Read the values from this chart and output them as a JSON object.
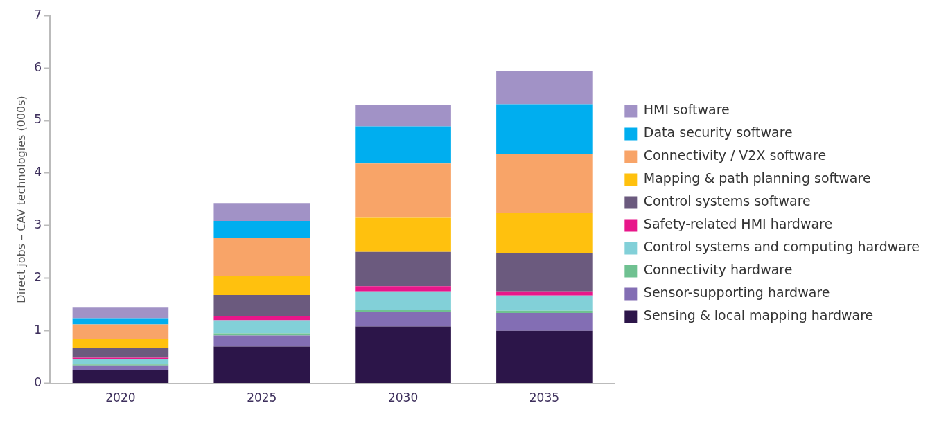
{
  "chart_data": {
    "type": "bar",
    "stacked": true,
    "ylabel": "Direct jobs – CAV technologies (000s)",
    "categories": [
      "2020",
      "2025",
      "2030",
      "2035"
    ],
    "series": [
      {
        "name": "Sensing & local mapping hardware",
        "color": "#2c1549",
        "values": [
          0.25,
          0.7,
          1.08,
          1.0
        ]
      },
      {
        "name": "Sensor-supporting hardware",
        "color": "#836eb4",
        "values": [
          0.09,
          0.21,
          0.27,
          0.34
        ]
      },
      {
        "name": "Connectivity hardware",
        "color": "#6fc191",
        "values": [
          0.02,
          0.04,
          0.05,
          0.04
        ]
      },
      {
        "name": "Control systems and computing hardware",
        "color": "#82d0d8",
        "values": [
          0.1,
          0.25,
          0.35,
          0.29
        ]
      },
      {
        "name": "Safety-related HMI hardware",
        "color": "#e8168a",
        "values": [
          0.03,
          0.08,
          0.1,
          0.08
        ]
      },
      {
        "name": "Control systems software",
        "color": "#6b5a7e",
        "values": [
          0.19,
          0.4,
          0.65,
          0.72
        ]
      },
      {
        "name": "Mapping & path planning software",
        "color": "#ffc10e",
        "values": [
          0.17,
          0.36,
          0.65,
          0.78
        ]
      },
      {
        "name": "Connectivity / V2X software",
        "color": "#f8a468",
        "values": [
          0.27,
          0.72,
          1.03,
          1.11
        ]
      },
      {
        "name": "Data security software",
        "color": "#00aeef",
        "values": [
          0.12,
          0.33,
          0.71,
          0.95
        ]
      },
      {
        "name": "HMI software",
        "color": "#a192c6",
        "values": [
          0.2,
          0.34,
          0.41,
          0.63
        ]
      }
    ],
    "ylim": [
      0,
      7
    ],
    "yticks": [
      0,
      1,
      2,
      3,
      4,
      5,
      6,
      7
    ],
    "grid": false,
    "legend": "right"
  }
}
